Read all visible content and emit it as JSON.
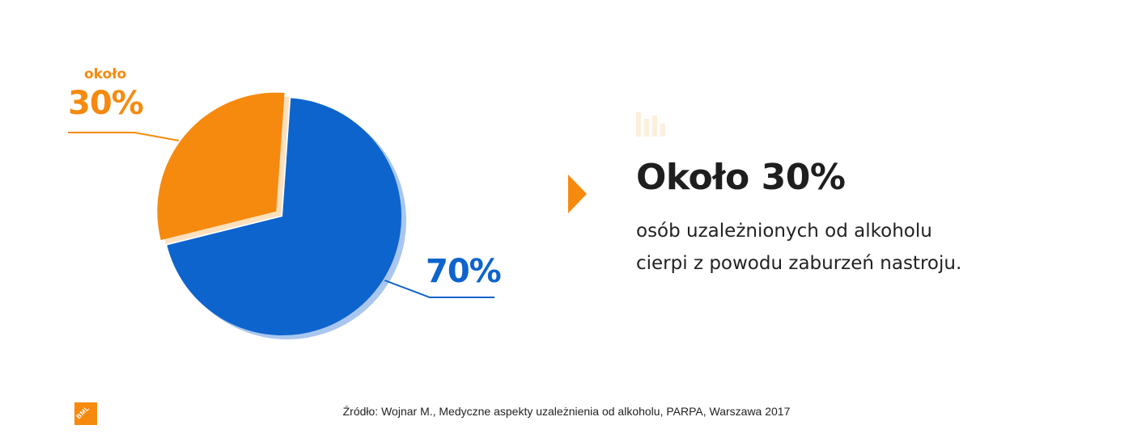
{
  "chart_data": {
    "type": "pie",
    "slices": [
      {
        "label": "70%",
        "value": 70,
        "color": "#0d64cc",
        "shadow_color": "#a9c6ef"
      },
      {
        "label": "30%",
        "prefix": "około",
        "value": 30,
        "color": "#f68a0e",
        "shadow_color": "#fde0bd"
      }
    ]
  },
  "headline": "Około 30%",
  "description": [
    "osób uzależnionych od alkoholu",
    "cierpi z powodu zaburzeń nastroju."
  ],
  "source": "Źródło: Wojnar M., Medyczne aspekty uzależnienia od alkoholu, PARPA, Warszawa 2017",
  "logo_text": "BML",
  "icons": {
    "arrow": "arrow-right-icon",
    "bars": "bar-chart-icon"
  },
  "colors": {
    "accent": "#f68a0e",
    "blue": "#0d64cc",
    "text": "#1e1e1e"
  }
}
